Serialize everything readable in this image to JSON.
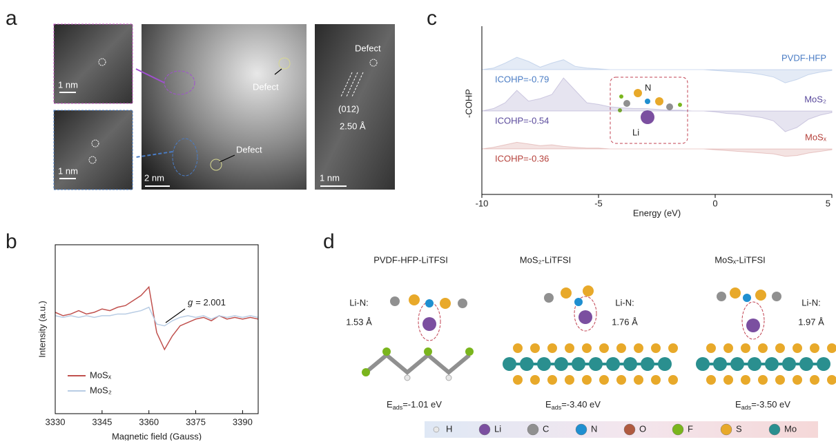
{
  "figure": {
    "panel_labels": [
      "a",
      "b",
      "c",
      "d"
    ]
  },
  "panel_a": {
    "scale_bars": [
      "1 nm",
      "1 nm",
      "2 nm",
      "1 nm"
    ],
    "defect_labels": [
      "Defect",
      "Defect",
      "Defect"
    ],
    "plane": "(012)",
    "spacing": "2.50 Å"
  },
  "chart_data": [
    {
      "type": "line",
      "xlabel": "Magnetic field (Gauss)",
      "ylabel": "Intensity (a.u.)",
      "x": [
        3330,
        3332.5,
        3335,
        3337.5,
        3340,
        3342.5,
        3345,
        3347.5,
        3350,
        3352.5,
        3355,
        3357.5,
        3360,
        3362.5,
        3365,
        3367.5,
        3370,
        3372.5,
        3375,
        3377.5,
        3380,
        3382.5,
        3385,
        3387.5,
        3390,
        3392.5,
        3395
      ],
      "xlim": [
        3330,
        3395
      ],
      "xticks": [
        3330,
        3345,
        3360,
        3375,
        3390
      ],
      "ylim": [
        0,
        100
      ],
      "series": [
        {
          "name": "MoSₓ",
          "color": "#c0504d",
          "values": [
            60,
            58,
            59,
            61,
            59,
            60,
            62,
            61,
            63,
            64,
            67,
            70,
            75,
            48,
            38,
            46,
            52,
            54,
            56,
            57,
            55,
            58,
            56,
            57,
            56,
            57,
            56
          ]
        },
        {
          "name": "MoS₂",
          "color": "#b8cce4",
          "values": [
            58,
            57,
            58,
            57,
            58,
            57,
            58,
            58,
            59,
            59,
            60,
            61,
            63,
            53,
            52,
            55,
            57,
            58,
            57,
            58,
            56,
            58,
            57,
            58,
            57,
            58,
            57
          ]
        }
      ],
      "annotation": {
        "symbol": "g",
        "text": "= 2.001"
      }
    },
    {
      "type": "area",
      "xlabel": "Energy (eV)",
      "ylabel": "-COHP",
      "x": [
        -10,
        -9.5,
        -9,
        -8.5,
        -8,
        -7.5,
        -7,
        -6.5,
        -6,
        -5.5,
        -5,
        -4.5,
        -4,
        -3.5,
        -3,
        -2.5,
        -2,
        -1.5,
        -1,
        -0.5,
        0,
        0.5,
        1,
        1.5,
        2,
        2.5,
        3,
        3.5,
        4,
        4.5,
        5
      ],
      "xlim": [
        -10,
        5
      ],
      "xticks": [
        -10,
        -5,
        0,
        5
      ],
      "ylim": [
        -3,
        3
      ],
      "series": [
        {
          "name": "PVDF-HFP",
          "color": "#4a7cc4",
          "icohp": "ICOHP=-0.79",
          "values": [
            0,
            0.2,
            0.8,
            1.5,
            1.0,
            0.3,
            0.8,
            1.2,
            0.4,
            0.2,
            0.1,
            0,
            0,
            0,
            0,
            0,
            0,
            0,
            0,
            0,
            -0.1,
            -0.2,
            -0.3,
            -0.4,
            -0.6,
            -0.9,
            -1.6,
            -1.2,
            -0.6,
            -0.3,
            -0.1
          ]
        },
        {
          "name": "MoS₂",
          "color": "#5a4a9c",
          "icohp": "ICOHP=-0.54",
          "values": [
            0,
            0.3,
            1.0,
            2.5,
            1.2,
            1.5,
            2.0,
            4.0,
            2.5,
            1.0,
            0.8,
            0.5,
            0.4,
            0.3,
            0.3,
            0.2,
            0.1,
            0.1,
            0,
            0,
            -0.1,
            -0.3,
            -0.4,
            -0.6,
            -0.8,
            -1.2,
            -2.5,
            -2.0,
            -1.0,
            -0.5,
            -0.2
          ]
        },
        {
          "name": "MoSₓ",
          "color": "#b5403a",
          "icohp": "ICOHP=-0.36",
          "values": [
            0,
            0.2,
            0.5,
            0.8,
            0.6,
            0.4,
            0.5,
            0.3,
            0.2,
            0.1,
            0.1,
            0,
            0,
            0,
            0,
            0,
            0,
            0,
            0,
            0,
            -0.1,
            -0.2,
            -0.3,
            -0.4,
            -0.5,
            -0.6,
            -0.9,
            -0.8,
            -0.5,
            -0.3,
            -0.1
          ]
        }
      ],
      "inset_labels": [
        "N",
        "Li"
      ]
    }
  ],
  "panel_d": {
    "systems": [
      {
        "title": "PVDF-HFP-LiTFSI",
        "bond": "Li-N:",
        "distance": "1.53 Å",
        "energy": {
          "symbol": "E",
          "subscript": "ads",
          "text": "=-1.01 eV"
        }
      },
      {
        "title": "MoS₂-LiTFSI",
        "bond": "Li-N:",
        "distance": "1.76 Å",
        "energy": {
          "symbol": "E",
          "subscript": "ads",
          "text": "=-3.40 eV"
        }
      },
      {
        "title": "MoSₓ-LiTFSI",
        "bond": "Li-N:",
        "distance": "1.97 Å",
        "energy": {
          "symbol": "E",
          "subscript": "ads",
          "text": "=-3.50 eV"
        }
      }
    ],
    "legend": [
      {
        "label": "H",
        "color": "#e8e8e8"
      },
      {
        "label": "Li",
        "color": "#7b4fa0"
      },
      {
        "label": "C",
        "color": "#909090"
      },
      {
        "label": "N",
        "color": "#1f8fd0"
      },
      {
        "label": "O",
        "color": "#b05a40"
      },
      {
        "label": "F",
        "color": "#7ab51d"
      },
      {
        "label": "S",
        "color": "#e8a92a"
      },
      {
        "label": "Mo",
        "color": "#2a8f8f"
      }
    ]
  }
}
